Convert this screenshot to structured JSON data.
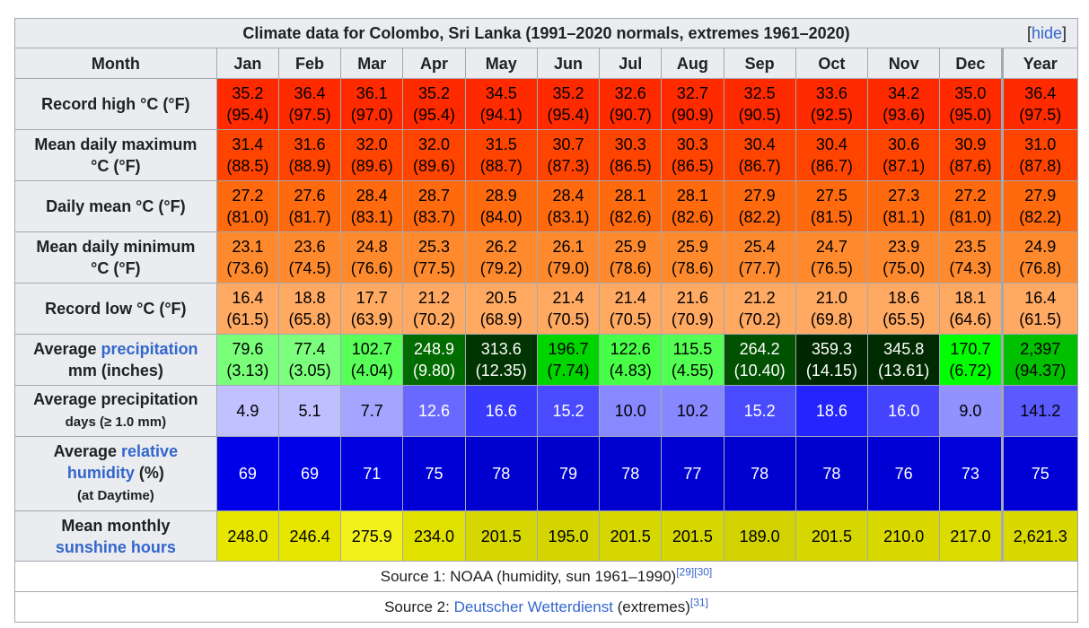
{
  "caption": {
    "title": "Climate data for Colombo, Sri Lanka (1991–2020 normals, extremes 1961–2020)",
    "hide_open": "[",
    "hide_label": "hide",
    "hide_close": "]"
  },
  "header": {
    "month_label": "Month",
    "months": [
      "Jan",
      "Feb",
      "Mar",
      "Apr",
      "May",
      "Jun",
      "Jul",
      "Aug",
      "Sep",
      "Oct",
      "Nov",
      "Dec"
    ],
    "year_label": "Year"
  },
  "rows": {
    "record_high": {
      "label": "Record high °C (°F)",
      "values": [
        "35.2",
        "36.4",
        "36.1",
        "35.2",
        "34.5",
        "35.2",
        "32.6",
        "32.7",
        "32.5",
        "33.6",
        "34.2",
        "35.0"
      ],
      "values_f": [
        "(95.4)",
        "(97.5)",
        "(97.0)",
        "(95.4)",
        "(94.1)",
        "(95.4)",
        "(90.7)",
        "(90.9)",
        "(90.5)",
        "(92.5)",
        "(93.6)",
        "(95.0)"
      ],
      "year": "36.4",
      "year_f": "(97.5)",
      "color": "#ff2a00",
      "text_color": "#000000"
    },
    "mean_max": {
      "label_line1": "Mean daily maximum",
      "label_line2": "°C (°F)",
      "values": [
        "31.4",
        "31.6",
        "32.0",
        "32.0",
        "31.5",
        "30.7",
        "30.3",
        "30.3",
        "30.4",
        "30.4",
        "30.6",
        "30.9"
      ],
      "values_f": [
        "(88.5)",
        "(88.9)",
        "(89.6)",
        "(89.6)",
        "(88.7)",
        "(87.3)",
        "(86.5)",
        "(86.5)",
        "(86.7)",
        "(86.7)",
        "(87.1)",
        "(87.6)"
      ],
      "year": "31.0",
      "year_f": "(87.8)",
      "color": "#ff4400",
      "text_color": "#000000"
    },
    "daily_mean": {
      "label": "Daily mean °C (°F)",
      "values": [
        "27.2",
        "27.6",
        "28.4",
        "28.7",
        "28.9",
        "28.4",
        "28.1",
        "28.1",
        "27.9",
        "27.5",
        "27.3",
        "27.2"
      ],
      "values_f": [
        "(81.0)",
        "(81.7)",
        "(83.1)",
        "(83.7)",
        "(84.0)",
        "(83.1)",
        "(82.6)",
        "(82.6)",
        "(82.2)",
        "(81.5)",
        "(81.1)",
        "(81.0)"
      ],
      "year": "27.9",
      "year_f": "(82.2)",
      "color": "#ff6a0e",
      "text_color": "#000000"
    },
    "mean_min": {
      "label_line1": "Mean daily minimum",
      "label_line2": "°C (°F)",
      "values": [
        "23.1",
        "23.6",
        "24.8",
        "25.3",
        "26.2",
        "26.1",
        "25.9",
        "25.9",
        "25.4",
        "24.7",
        "23.9",
        "23.5"
      ],
      "values_f": [
        "(73.6)",
        "(74.5)",
        "(76.6)",
        "(77.5)",
        "(79.2)",
        "(79.0)",
        "(78.6)",
        "(78.6)",
        "(77.7)",
        "(76.5)",
        "(75.0)",
        "(74.3)"
      ],
      "year": "24.9",
      "year_f": "(76.8)",
      "color": "#ff8a2e",
      "text_color": "#000000"
    },
    "record_low": {
      "label": "Record low °C (°F)",
      "values": [
        "16.4",
        "18.8",
        "17.7",
        "21.2",
        "20.5",
        "21.4",
        "21.4",
        "21.6",
        "21.2",
        "21.0",
        "18.6",
        "18.1"
      ],
      "values_f": [
        "(61.5)",
        "(65.8)",
        "(63.9)",
        "(70.2)",
        "(68.9)",
        "(70.5)",
        "(70.5)",
        "(70.9)",
        "(70.2)",
        "(69.8)",
        "(65.5)",
        "(64.6)"
      ],
      "year": "16.4",
      "year_f": "(61.5)",
      "color": "#ffa962",
      "text_color": "#000000"
    },
    "precipitation": {
      "label_prefix": "Average ",
      "label_link": "precipitation",
      "label_line2": "mm (inches)",
      "values": [
        "79.6",
        "77.4",
        "102.7",
        "248.9",
        "313.6",
        "196.7",
        "122.6",
        "115.5",
        "264.2",
        "359.3",
        "345.8",
        "170.7"
      ],
      "values_in": [
        "(3.13)",
        "(3.05)",
        "(4.04)",
        "(9.80)",
        "(12.35)",
        "(7.74)",
        "(4.83)",
        "(4.55)",
        "(10.40)",
        "(14.15)",
        "(13.61)",
        "(6.72)"
      ],
      "year": "2,397",
      "year_in": "(94.37)",
      "colors": [
        "#7aff7a",
        "#7cff7c",
        "#58ff58",
        "#006c00",
        "#003400",
        "#00d500",
        "#48ff48",
        "#52ff52",
        "#005200",
        "#002800",
        "#002a00",
        "#00ff00"
      ],
      "text_colors": [
        "#000000",
        "#000000",
        "#000000",
        "#ffffff",
        "#ffffff",
        "#000000",
        "#000000",
        "#000000",
        "#ffffff",
        "#ffffff",
        "#ffffff",
        "#000000"
      ],
      "year_color": "#00c000",
      "year_text_color": "#000000"
    },
    "precip_days": {
      "label_line1": "Average precipitation",
      "label_line2": "days (≥ 1.0 mm)",
      "values": [
        "4.9",
        "5.1",
        "7.7",
        "12.6",
        "16.6",
        "15.2",
        "10.0",
        "10.2",
        "15.2",
        "18.6",
        "16.0",
        "9.0"
      ],
      "year": "141.2",
      "colors": [
        "#c1c1ff",
        "#bfbfff",
        "#a5a5ff",
        "#6969ff",
        "#3a3aff",
        "#4a4aff",
        "#8888ff",
        "#8787ff",
        "#4a4aff",
        "#2424ff",
        "#4444ff",
        "#9191ff"
      ],
      "text_colors": [
        "#000000",
        "#000000",
        "#000000",
        "#ffffff",
        "#ffffff",
        "#ffffff",
        "#000000",
        "#000000",
        "#ffffff",
        "#ffffff",
        "#ffffff",
        "#000000"
      ],
      "year_color": "#5a5aff",
      "year_text_color": "#000000"
    },
    "humidity": {
      "label_prefix": "Average ",
      "label_link1": "relative",
      "label_link2": "humidity",
      "label_suffix": " (%)",
      "label_line3": "(at Daytime)",
      "values": [
        "69",
        "69",
        "71",
        "75",
        "78",
        "79",
        "78",
        "77",
        "78",
        "78",
        "76",
        "73"
      ],
      "year": "75",
      "colors": [
        "#0000e8",
        "#0000e8",
        "#0000e0",
        "#0000d6",
        "#0000cf",
        "#0000cd",
        "#0000cf",
        "#0000d2",
        "#0000cf",
        "#0000cf",
        "#0000d4",
        "#0000db"
      ],
      "year_color": "#0000d6",
      "text_color": "#ffffff"
    },
    "sunshine": {
      "label_line1": "Mean monthly",
      "label_link": "sunshine hours",
      "values": [
        "248.0",
        "246.4",
        "275.9",
        "234.0",
        "201.5",
        "195.0",
        "201.5",
        "201.5",
        "189.0",
        "201.5",
        "210.0",
        "217.0"
      ],
      "year": "2,621.3",
      "colors": [
        "#e6e600",
        "#e6e600",
        "#f2f21a",
        "#e1e100",
        "#d6d600",
        "#d4d400",
        "#d6d600",
        "#d6d600",
        "#d2d200",
        "#d6d600",
        "#d9d900",
        "#dbdb00"
      ],
      "year_color": "#d9d900",
      "text_color": "#000000"
    }
  },
  "sources": {
    "source1_text": "Source 1: NOAA (humidity, sun 1961–1990)",
    "source1_refs": "[29][30]",
    "source2_prefix": "Source 2: ",
    "source2_link": "Deutscher Wetterdienst",
    "source2_suffix": " (extremes)",
    "source2_ref": "[31]"
  }
}
